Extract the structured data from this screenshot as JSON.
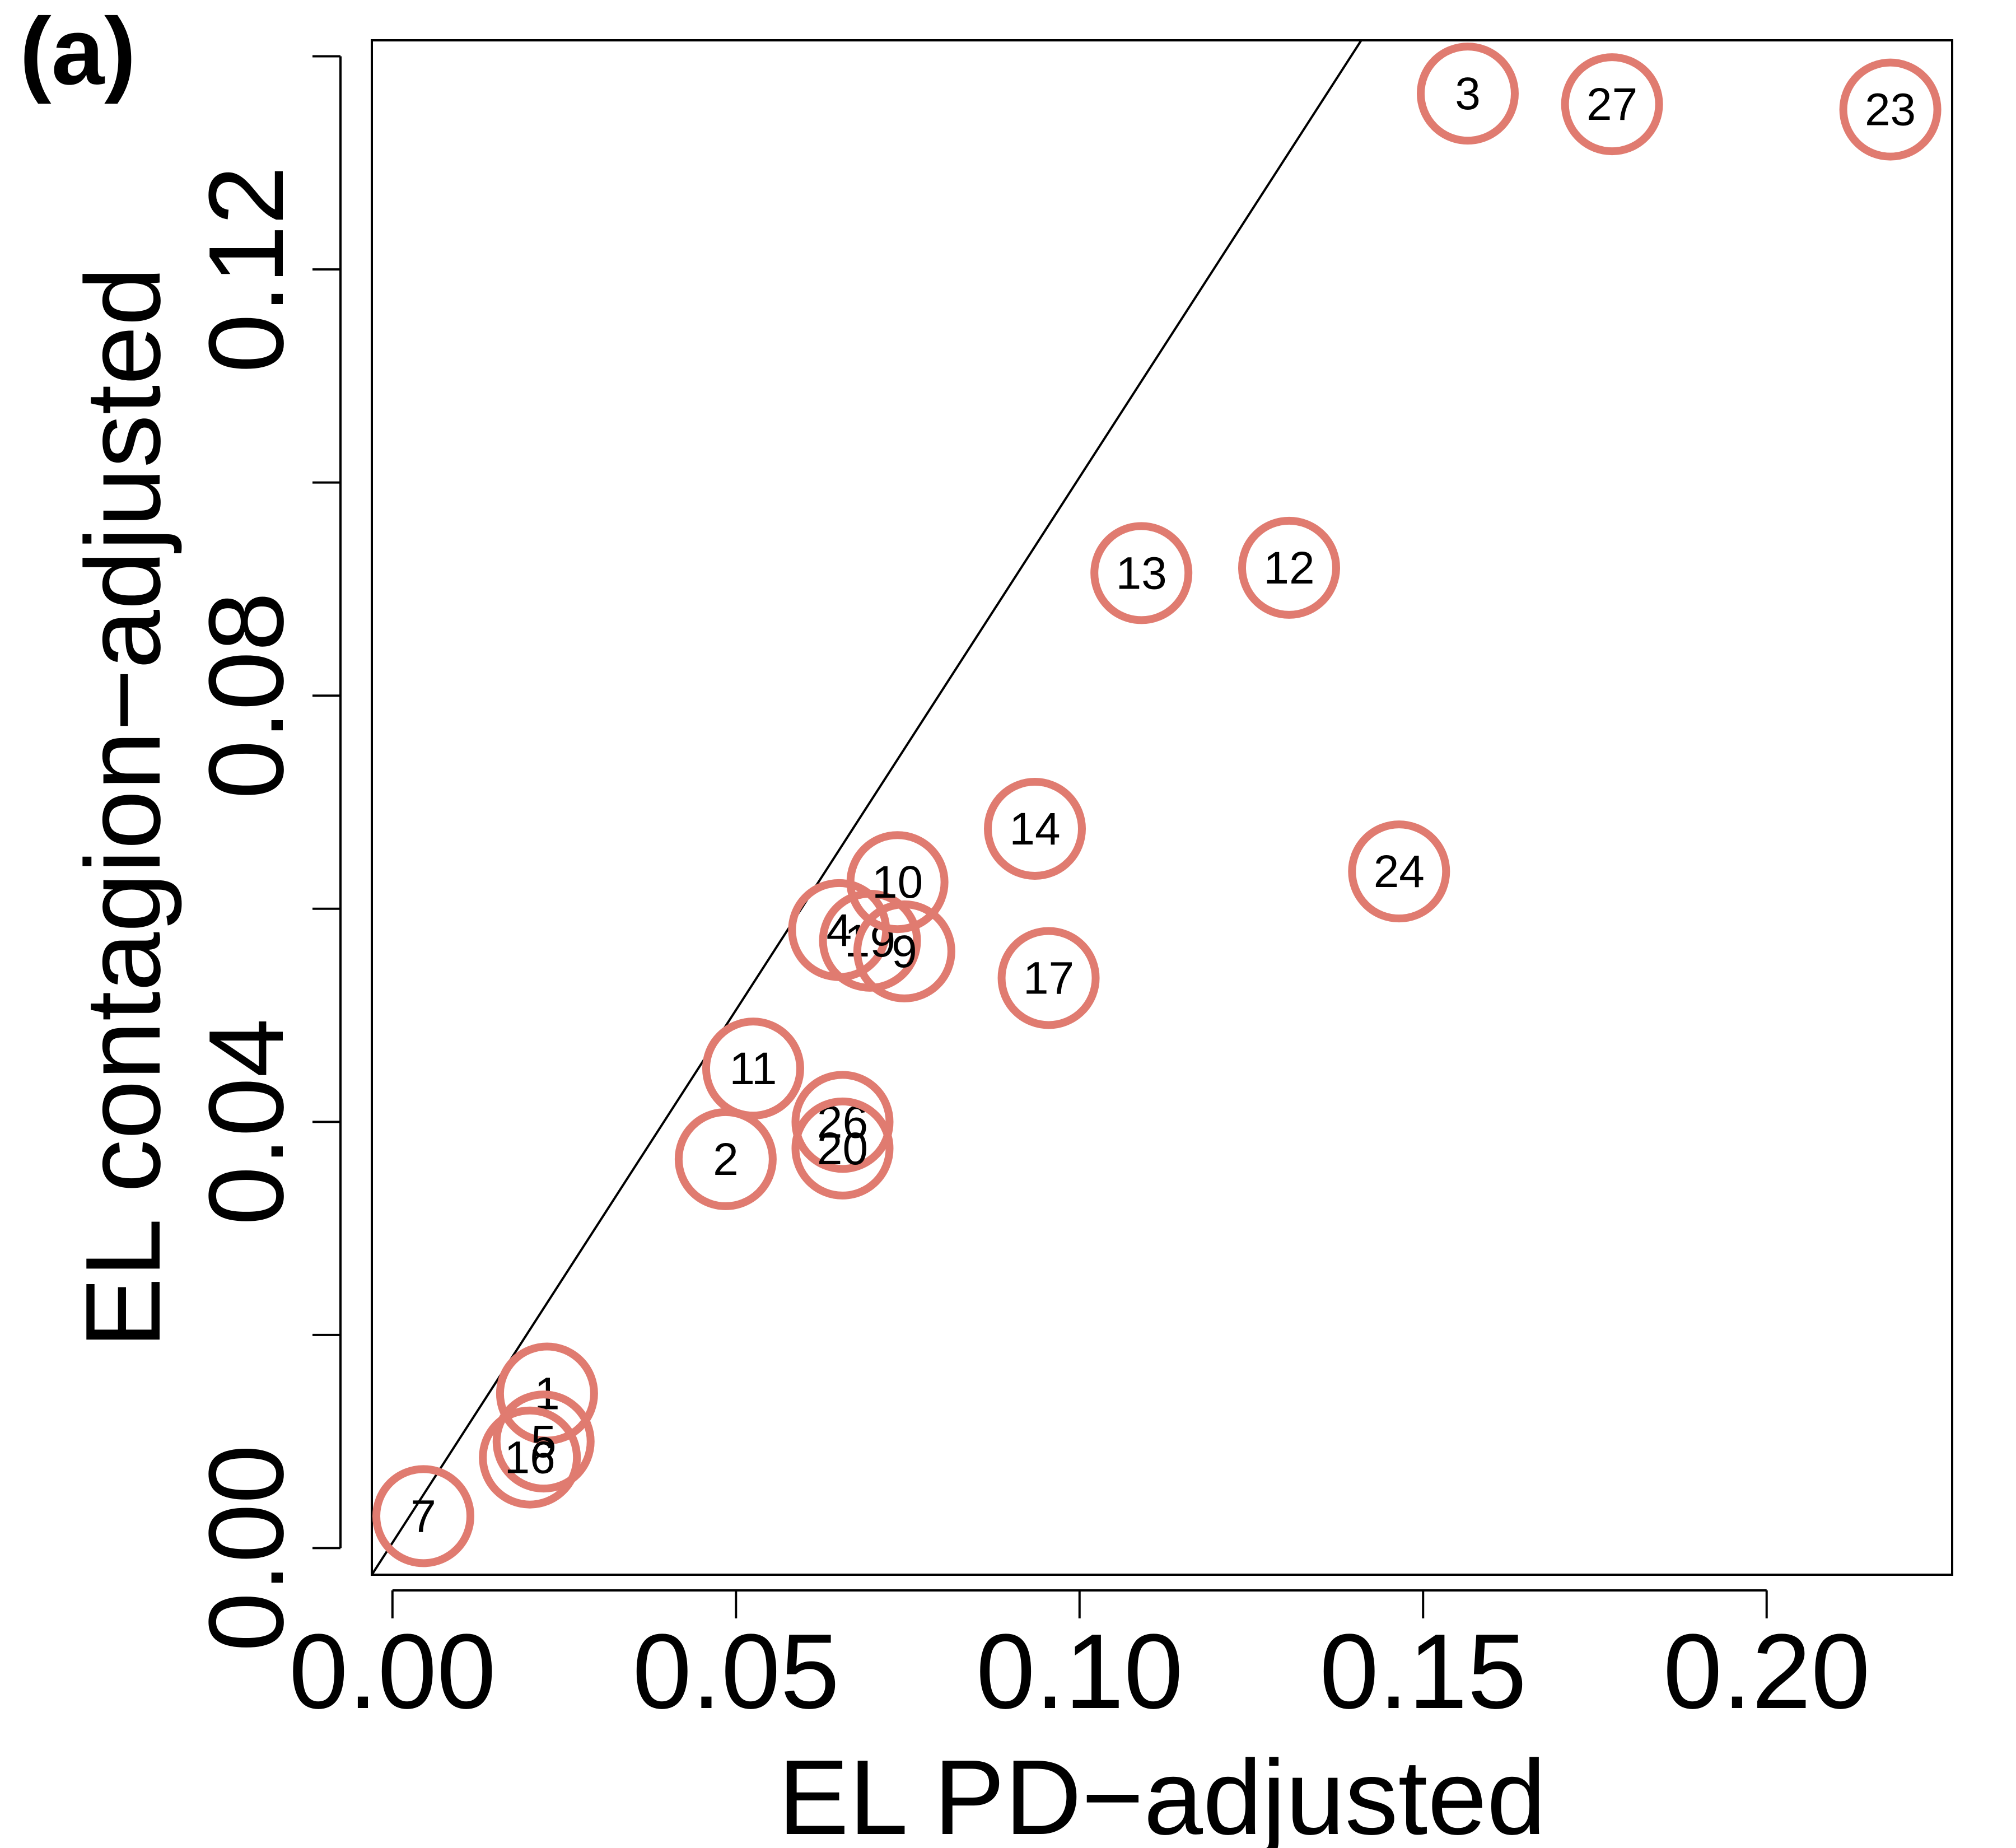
{
  "panel_label": "(a)",
  "chart_data": {
    "type": "scatter",
    "xlabel": "EL PD−adjusted",
    "ylabel": "EL contagion−adjusted",
    "xlim": [
      -0.003,
      0.227
    ],
    "ylim": [
      -0.0025,
      0.1415
    ],
    "x_ticks": [
      0.0,
      0.05,
      0.1,
      0.15,
      0.2
    ],
    "x_tick_labels": [
      "0.00",
      "0.05",
      "0.10",
      "0.15",
      "0.20"
    ],
    "y_ticks": [
      0.0,
      0.02,
      0.04,
      0.06,
      0.08,
      0.1,
      0.12,
      0.14
    ],
    "y_tick_labels": [
      "0.00",
      "",
      "0.04",
      "",
      "0.08",
      "",
      "0.12",
      ""
    ],
    "reference_line": {
      "x": [
        -0.003,
        0.141
      ],
      "y": [
        -0.0025,
        0.1415
      ]
    },
    "marker_color": "#E07B70",
    "points": [
      {
        "label": "1",
        "x": 0.0225,
        "y": 0.0145
      },
      {
        "label": "5",
        "x": 0.022,
        "y": 0.01
      },
      {
        "label": "16",
        "x": 0.02,
        "y": 0.0085
      },
      {
        "label": "7",
        "x": 0.0045,
        "y": 0.003
      },
      {
        "label": "2",
        "x": 0.0485,
        "y": 0.0365
      },
      {
        "label": "11",
        "x": 0.0525,
        "y": 0.045
      },
      {
        "label": "26",
        "x": 0.0655,
        "y": 0.04
      },
      {
        "label": "20",
        "x": 0.0655,
        "y": 0.0375
      },
      {
        "label": "4",
        "x": 0.065,
        "y": 0.058
      },
      {
        "label": "19",
        "x": 0.0695,
        "y": 0.057
      },
      {
        "label": "9",
        "x": 0.0745,
        "y": 0.056
      },
      {
        "label": "10",
        "x": 0.0735,
        "y": 0.0625
      },
      {
        "label": "17",
        "x": 0.0955,
        "y": 0.0535
      },
      {
        "label": "14",
        "x": 0.0935,
        "y": 0.0675
      },
      {
        "label": "13",
        "x": 0.109,
        "y": 0.0915
      },
      {
        "label": "12",
        "x": 0.1305,
        "y": 0.092
      },
      {
        "label": "24",
        "x": 0.1465,
        "y": 0.0635
      },
      {
        "label": "3",
        "x": 0.1565,
        "y": 0.1365
      },
      {
        "label": "27",
        "x": 0.1775,
        "y": 0.1355
      },
      {
        "label": "23",
        "x": 0.218,
        "y": 0.135
      }
    ]
  }
}
